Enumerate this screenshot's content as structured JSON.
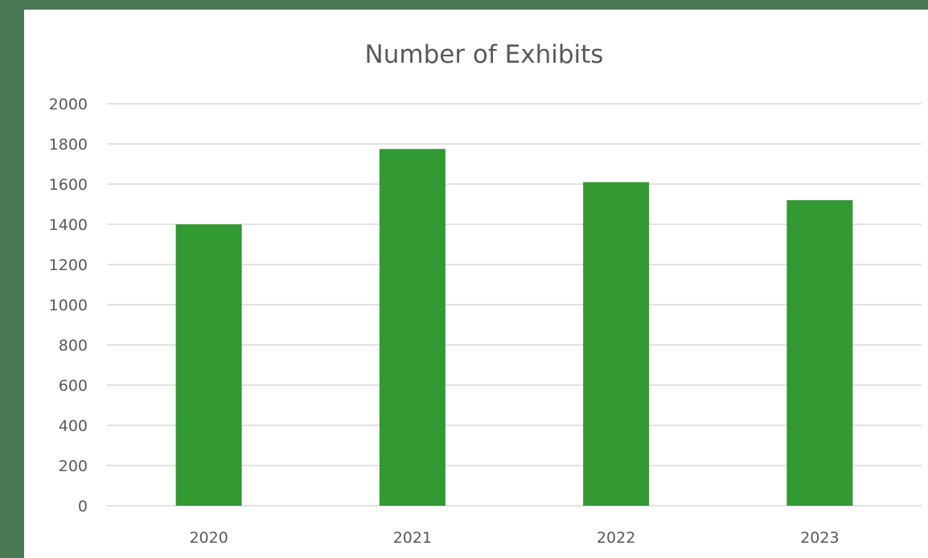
{
  "colors": {
    "background": "#4a7a55",
    "panel": "#ffffff",
    "bar": "#339933",
    "gridline": "#d9d9d9",
    "text": "#595959"
  },
  "chart_data": {
    "type": "bar",
    "title": "Number of Exhibits",
    "xlabel": "",
    "ylabel": "",
    "categories": [
      "2020",
      "2021",
      "2022",
      "2023"
    ],
    "values": [
      1400,
      1775,
      1610,
      1520
    ],
    "ylim": [
      0,
      2000
    ],
    "yticks": [
      0,
      200,
      400,
      600,
      800,
      1000,
      1200,
      1400,
      1600,
      1800,
      2000
    ],
    "grid": true,
    "legend": "none"
  }
}
